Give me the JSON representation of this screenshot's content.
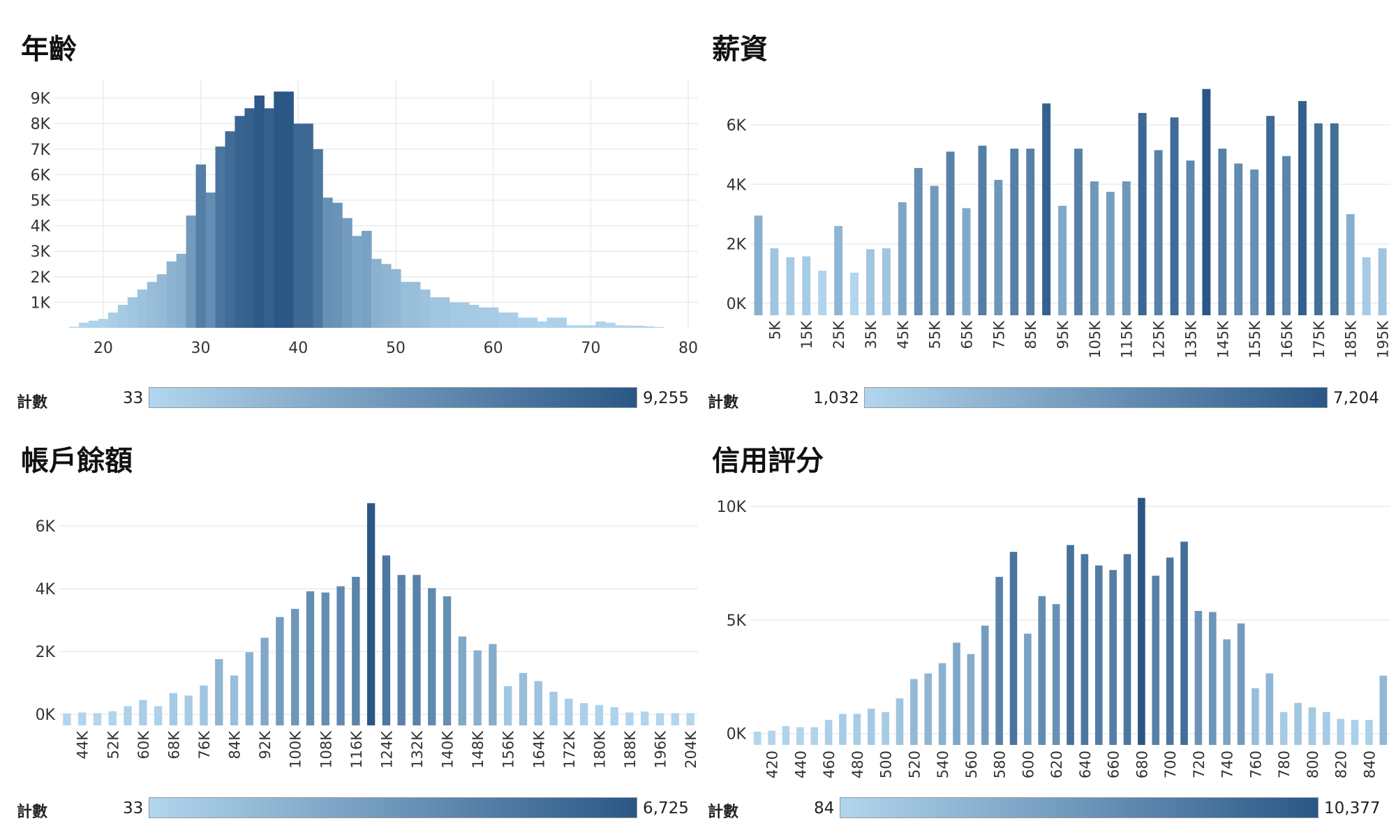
{
  "colors": {
    "low": "#b2d6ee",
    "high": "#2a5786",
    "grid": "#ebebeb"
  },
  "legend_label": "計數",
  "chart_data": [
    {
      "id": "age",
      "type": "bar",
      "title": "年齡",
      "xlabel": "",
      "ylabel": "",
      "x_type": "continuous",
      "bin_width": 1,
      "xlim": [
        15,
        81
      ],
      "ylim": [
        0,
        9700
      ],
      "x_ticks": [
        20,
        30,
        40,
        50,
        60,
        70,
        80
      ],
      "y_ticks": [
        1000,
        2000,
        3000,
        4000,
        5000,
        6000,
        7000,
        8000,
        9000
      ],
      "y_tick_labels": [
        "1K",
        "2K",
        "3K",
        "4K",
        "5K",
        "6K",
        "7K",
        "8K",
        "9K"
      ],
      "x": [
        17,
        18,
        19,
        20,
        21,
        22,
        23,
        24,
        25,
        26,
        27,
        28,
        29,
        30,
        31,
        32,
        33,
        34,
        35,
        36,
        37,
        38,
        39,
        40,
        41,
        42,
        43,
        44,
        45,
        46,
        47,
        48,
        49,
        50,
        51,
        52,
        53,
        54,
        55,
        56,
        57,
        58,
        59,
        60,
        61,
        62,
        63,
        64,
        65,
        66,
        67,
        68,
        69,
        70,
        71,
        72,
        73,
        74,
        75,
        76,
        77
      ],
      "values": [
        40,
        200,
        280,
        350,
        600,
        900,
        1200,
        1500,
        1800,
        2100,
        2600,
        2900,
        4400,
        6400,
        5300,
        7100,
        7700,
        8300,
        8600,
        9100,
        8600,
        9255,
        9255,
        8000,
        8000,
        7000,
        5100,
        4900,
        4300,
        3600,
        3800,
        2700,
        2500,
        2300,
        1800,
        1800,
        1500,
        1200,
        1200,
        1000,
        1000,
        900,
        800,
        800,
        600,
        600,
        400,
        400,
        250,
        400,
        400,
        100,
        100,
        100,
        250,
        200,
        100,
        90,
        80,
        60,
        33
      ],
      "legend_min": "33",
      "legend_max": "9,255"
    },
    {
      "id": "salary",
      "type": "bar",
      "title": "薪資",
      "xlabel": "",
      "ylabel": "",
      "x_type": "category",
      "ylim": [
        -400,
        7500
      ],
      "y_ticks": [
        0,
        2000,
        4000,
        6000
      ],
      "y_tick_labels": [
        "0K",
        "2K",
        "4K",
        "6K"
      ],
      "categories": [
        "0K",
        "5K",
        "10K",
        "15K",
        "20K",
        "25K",
        "30K",
        "35K",
        "40K",
        "45K",
        "50K",
        "55K",
        "60K",
        "65K",
        "70K",
        "75K",
        "80K",
        "85K",
        "90K",
        "95K",
        "100K",
        "105K",
        "110K",
        "115K",
        "120K",
        "125K",
        "130K",
        "135K",
        "140K",
        "145K",
        "150K",
        "155K",
        "160K",
        "165K",
        "170K",
        "175K",
        "180K",
        "185K",
        "190K",
        "195K"
      ],
      "tick_labels": [
        "",
        "5K",
        "",
        "15K",
        "",
        "25K",
        "",
        "35K",
        "",
        "45K",
        "",
        "55K",
        "",
        "65K",
        "",
        "75K",
        "",
        "85K",
        "",
        "95K",
        "",
        "105K",
        "",
        "115K",
        "",
        "125K",
        "",
        "135K",
        "",
        "145K",
        "",
        "155K",
        "",
        "165K",
        "",
        "175K",
        "",
        "185K",
        "",
        "195K"
      ],
      "values": [
        2950,
        1850,
        1550,
        1580,
        1100,
        2600,
        1032,
        1820,
        1850,
        3400,
        4550,
        3950,
        5100,
        3200,
        5300,
        4150,
        5200,
        5200,
        6720,
        3280,
        5200,
        4100,
        3750,
        4100,
        6400,
        5150,
        6250,
        4800,
        7204,
        5200,
        4700,
        4500,
        6300,
        4950,
        6800,
        6050,
        6050,
        3000,
        1550,
        1850
      ],
      "legend_min": "1,032",
      "legend_max": "7,204"
    },
    {
      "id": "balance",
      "type": "bar",
      "title": "帳戶餘額",
      "xlabel": "",
      "ylabel": "",
      "x_type": "category",
      "ylim": [
        -350,
        7200
      ],
      "y_ticks": [
        0,
        2000,
        4000,
        6000
      ],
      "y_tick_labels": [
        "0K",
        "2K",
        "4K",
        "6K"
      ],
      "categories": [
        "40K",
        "44K",
        "48K",
        "52K",
        "56K",
        "60K",
        "64K",
        "68K",
        "72K",
        "76K",
        "80K",
        "84K",
        "88K",
        "92K",
        "96K",
        "100K",
        "104K",
        "108K",
        "112K",
        "116K",
        "120K",
        "124K",
        "128K",
        "132K",
        "136K",
        "140K",
        "144K",
        "148K",
        "152K",
        "156K",
        "160K",
        "164K",
        "168K",
        "172K",
        "176K",
        "180K",
        "184K",
        "188K",
        "192K",
        "196K",
        "200K",
        "204K"
      ],
      "tick_labels": [
        "",
        "44K",
        "",
        "52K",
        "",
        "60K",
        "",
        "68K",
        "",
        "76K",
        "",
        "84K",
        "",
        "92K",
        "",
        "100K",
        "",
        "108K",
        "",
        "116K",
        "",
        "124K",
        "",
        "132K",
        "",
        "140K",
        "",
        "148K",
        "",
        "156K",
        "",
        "164K",
        "",
        "172K",
        "",
        "180K",
        "",
        "188K",
        "",
        "196K",
        "",
        "204K"
      ],
      "values": [
        33,
        60,
        40,
        100,
        260,
        460,
        260,
        680,
        600,
        920,
        1760,
        1240,
        1980,
        2440,
        3100,
        3360,
        3920,
        3880,
        4080,
        4380,
        6725,
        5060,
        4440,
        4440,
        4020,
        3760,
        2480,
        2040,
        2240,
        900,
        1320,
        1060,
        720,
        500,
        360,
        300,
        230,
        60,
        90,
        40,
        40,
        40
      ],
      "legend_min": "33",
      "legend_max": "6,725"
    },
    {
      "id": "credit",
      "type": "bar",
      "title": "信用評分",
      "xlabel": "",
      "ylabel": "",
      "x_type": "category",
      "ylim": [
        -500,
        10800
      ],
      "y_ticks": [
        0,
        5000,
        10000
      ],
      "y_tick_labels": [
        "0K",
        "5K",
        "10K"
      ],
      "categories": [
        "410",
        "420",
        "430",
        "440",
        "450",
        "460",
        "470",
        "480",
        "490",
        "500",
        "510",
        "520",
        "530",
        "540",
        "550",
        "560",
        "570",
        "580",
        "590",
        "600",
        "610",
        "620",
        "630",
        "640",
        "650",
        "660",
        "670",
        "680",
        "690",
        "700",
        "710",
        "720",
        "730",
        "740",
        "750",
        "760",
        "770",
        "780",
        "790",
        "800",
        "810",
        "820",
        "830",
        "840",
        "850"
      ],
      "tick_labels": [
        "",
        "420",
        "",
        "440",
        "",
        "460",
        "",
        "480",
        "",
        "500",
        "",
        "520",
        "",
        "540",
        "",
        "560",
        "",
        "580",
        "",
        "600",
        "",
        "620",
        "",
        "640",
        "",
        "660",
        "",
        "680",
        "",
        "700",
        "",
        "720",
        "",
        "740",
        "",
        "760",
        "",
        "780",
        "",
        "800",
        "",
        "820",
        "",
        "840",
        ""
      ],
      "values": [
        84,
        130,
        330,
        280,
        280,
        600,
        870,
        870,
        1100,
        950,
        1550,
        2400,
        2650,
        3100,
        4000,
        3500,
        4750,
        6900,
        8000,
        4400,
        6050,
        5700,
        8300,
        7900,
        7400,
        7200,
        7900,
        10377,
        6950,
        7750,
        8450,
        5400,
        5350,
        4150,
        4850,
        2000,
        2650,
        950,
        1350,
        1150,
        950,
        650,
        600,
        600,
        2550
      ],
      "legend_min": "84",
      "legend_max": "10,377"
    }
  ]
}
